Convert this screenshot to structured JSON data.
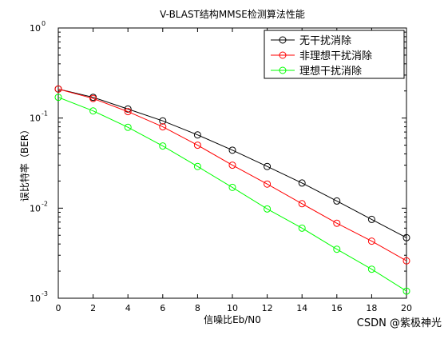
{
  "chart_data": {
    "type": "line",
    "title": "V-BLAST结构MMSE检测算法性能",
    "xlabel": "信噪比Eb/N0",
    "ylabel": "误比特率（BER）",
    "x": [
      0,
      2,
      4,
      6,
      8,
      10,
      12,
      14,
      16,
      18,
      20
    ],
    "xlim": [
      0,
      20
    ],
    "xticks": [
      "0",
      "2",
      "4",
      "6",
      "8",
      "10",
      "12",
      "14",
      "16",
      "18",
      "20"
    ],
    "ylim": [
      0.001,
      1
    ],
    "yscale": "log",
    "yticks": [
      {
        "base": "10",
        "exp": "0"
      },
      {
        "base": "10",
        "exp": "-1"
      },
      {
        "base": "10",
        "exp": "-2"
      },
      {
        "base": "10",
        "exp": "-3"
      }
    ],
    "grid": false,
    "legend_position": "top-right",
    "series": [
      {
        "name": "无干扰消除",
        "color": "#000000",
        "marker": "circle",
        "values": [
          0.21,
          0.17,
          0.126,
          0.093,
          0.065,
          0.044,
          0.029,
          0.019,
          0.012,
          0.0075,
          0.0047
        ]
      },
      {
        "name": "非理想干扰消除",
        "color": "#ff0000",
        "marker": "circle",
        "values": [
          0.21,
          0.165,
          0.118,
          0.08,
          0.05,
          0.03,
          0.0185,
          0.0112,
          0.0068,
          0.0043,
          0.0026
        ]
      },
      {
        "name": "理想干扰消除",
        "color": "#00ff00",
        "marker": "circle",
        "values": [
          0.17,
          0.12,
          0.079,
          0.049,
          0.029,
          0.017,
          0.0098,
          0.006,
          0.0035,
          0.0021,
          0.0012
        ]
      }
    ]
  },
  "watermark": "CSDN @紫极神光"
}
